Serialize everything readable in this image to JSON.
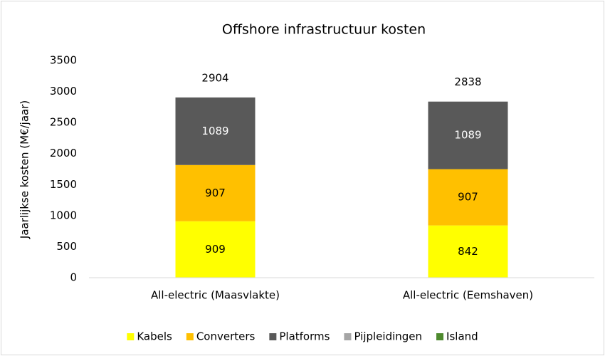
{
  "chart_data": {
    "type": "stacked_bar",
    "title": "Offshore infrastructuur kosten",
    "y_label": "Jaarlijkse kosten (M€/jaar)",
    "categories": [
      "All-electric (Maasvlakte)",
      "All-electric (Eemshaven)"
    ],
    "series": [
      {
        "name": "Kabels",
        "color": "#ffff00",
        "values": [
          909,
          842
        ]
      },
      {
        "name": "Converters",
        "color": "#ffc000",
        "values": [
          907,
          907
        ]
      },
      {
        "name": "Platforms",
        "color": "#595959",
        "values": [
          1089,
          1089
        ]
      },
      {
        "name": "Pijpleidingen",
        "color": "#a5a5a5",
        "values": [
          0,
          0
        ]
      },
      {
        "name": "Island",
        "color": "#4e8a2e",
        "values": [
          0,
          0
        ]
      }
    ],
    "totals": [
      2904,
      2838
    ],
    "ylim": [
      0,
      3500
    ],
    "yticks": [
      0,
      500,
      1000,
      1500,
      2000,
      2500,
      3000,
      3500
    ],
    "grid": false,
    "legend": "bottom"
  }
}
